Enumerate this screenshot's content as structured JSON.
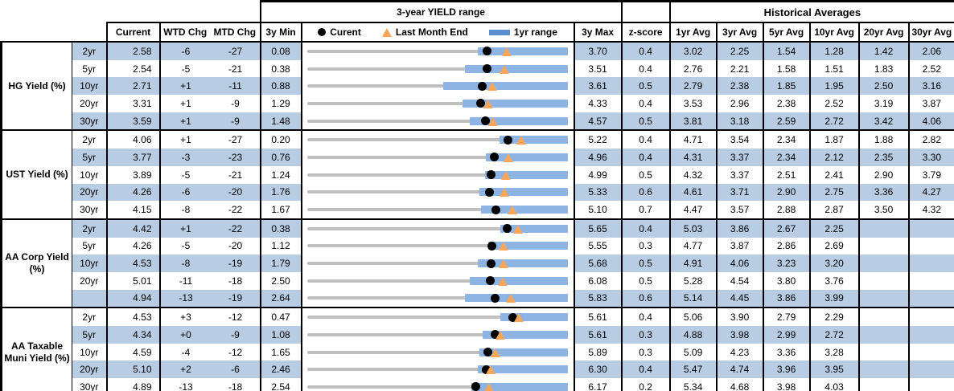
{
  "colors": {
    "stripe_blue": "#b8cce4",
    "range_bar_blue": "#8eb4e3",
    "track_gray": "#bfbfbf",
    "marker_orange": "#f9a65a",
    "marker_black": "#000000"
  },
  "chart_data": {
    "type": "table",
    "title_range": "3-year YIELD range",
    "title_hist": "Historical Averages",
    "legend": {
      "current": "Curent",
      "last_month_end": "Last Month End",
      "range1yr": "1yr range"
    },
    "columns": {
      "current": "Current",
      "wtd": "WTD Chg",
      "mtd": "MTD Chg",
      "min": "3y Min",
      "max": "3y Max",
      "z": "z-score",
      "avgs": [
        "1yr Avg",
        "3yr Avg",
        "5yr Avg",
        "10yr Avg",
        "20yr Avg",
        "30yr Avg"
      ]
    },
    "range_chart_notes": {
      "dot": "current value",
      "triangle": "last month end = current - MTD chg (bp)",
      "bar": "1yr range, low estimated from pixels, high = 3y max",
      "axis": "each row spans 3y Min to 3y Max"
    },
    "groups": [
      {
        "name": "HG Yield (%)",
        "rows": [
          {
            "tenor": "2yr",
            "current": "2.58",
            "wtd": "-6",
            "mtd": "-27",
            "min": "0.08",
            "max": "3.70",
            "z": "0.4",
            "yr1_low_est": 2.45,
            "avgs": [
              "3.02",
              "2.25",
              "1.54",
              "1.28",
              "1.42",
              "2.06"
            ]
          },
          {
            "tenor": "5yr",
            "current": "2.54",
            "wtd": "-5",
            "mtd": "-21",
            "min": "0.38",
            "max": "3.51",
            "z": "0.4",
            "yr1_low_est": 2.27,
            "avgs": [
              "2.76",
              "2.21",
              "1.58",
              "1.51",
              "1.83",
              "2.52"
            ]
          },
          {
            "tenor": "10yr",
            "current": "2.71",
            "wtd": "+1",
            "mtd": "-11",
            "min": "0.88",
            "max": "3.61",
            "z": "0.5",
            "yr1_low_est": 2.3,
            "avgs": [
              "2.79",
              "2.38",
              "1.85",
              "1.95",
              "2.50",
              "3.16"
            ]
          },
          {
            "tenor": "20yr",
            "current": "3.31",
            "wtd": "+1",
            "mtd": "-9",
            "min": "1.29",
            "max": "4.33",
            "z": "0.4",
            "yr1_low_est": 3.1,
            "avgs": [
              "3.53",
              "2.96",
              "2.38",
              "2.52",
              "3.19",
              "3.87"
            ]
          },
          {
            "tenor": "30yr",
            "current": "3.59",
            "wtd": "+1",
            "mtd": "-9",
            "min": "1.48",
            "max": "4.57",
            "z": "0.5",
            "yr1_low_est": 3.41,
            "avgs": [
              "3.81",
              "3.18",
              "2.59",
              "2.72",
              "3.42",
              "4.06"
            ]
          }
        ]
      },
      {
        "name": "UST Yield (%)",
        "rows": [
          {
            "tenor": "2yr",
            "current": "4.06",
            "wtd": "+1",
            "mtd": "-27",
            "min": "0.20",
            "max": "5.22",
            "z": "0.4",
            "yr1_low_est": 3.9,
            "avgs": [
              "4.71",
              "3.54",
              "2.34",
              "1.87",
              "1.88",
              "2.82"
            ]
          },
          {
            "tenor": "5yr",
            "current": "3.77",
            "wtd": "-3",
            "mtd": "-23",
            "min": "0.76",
            "max": "4.96",
            "z": "0.4",
            "yr1_low_est": 3.64,
            "avgs": [
              "4.31",
              "3.37",
              "2.34",
              "2.12",
              "2.35",
              "3.30"
            ]
          },
          {
            "tenor": "10yr",
            "current": "3.89",
            "wtd": "-5",
            "mtd": "-21",
            "min": "1.24",
            "max": "4.99",
            "z": "0.5",
            "yr1_low_est": 3.8,
            "avgs": [
              "4.32",
              "3.37",
              "2.51",
              "2.41",
              "2.90",
              "3.79"
            ]
          },
          {
            "tenor": "20yr",
            "current": "4.26",
            "wtd": "-6",
            "mtd": "-20",
            "min": "1.76",
            "max": "5.33",
            "z": "0.6",
            "yr1_low_est": 4.12,
            "avgs": [
              "4.61",
              "3.71",
              "2.90",
              "2.75",
              "3.36",
              "4.27"
            ]
          },
          {
            "tenor": "30yr",
            "current": "4.15",
            "wtd": "-8",
            "mtd": "-22",
            "min": "1.67",
            "max": "5.10",
            "z": "0.7",
            "yr1_low_est": 3.96,
            "avgs": [
              "4.47",
              "3.57",
              "2.88",
              "2.87",
              "3.50",
              "4.32"
            ]
          }
        ]
      },
      {
        "name": "AA Corp Yield (%)",
        "rows": [
          {
            "tenor": "2yr",
            "current": "4.42",
            "wtd": "+1",
            "mtd": "-22",
            "min": "0.38",
            "max": "5.65",
            "z": "0.4",
            "yr1_low_est": 4.28,
            "avgs": [
              "5.03",
              "3.86",
              "2.67",
              "2.25",
              "",
              ""
            ]
          },
          {
            "tenor": "5yr",
            "current": "4.26",
            "wtd": "-5",
            "mtd": "-20",
            "min": "1.12",
            "max": "5.55",
            "z": "0.3",
            "yr1_low_est": 4.2,
            "avgs": [
              "4.77",
              "3.87",
              "2.86",
              "2.69",
              "",
              ""
            ]
          },
          {
            "tenor": "10yr",
            "current": "4.53",
            "wtd": "-8",
            "mtd": "-19",
            "min": "1.79",
            "max": "5.68",
            "z": "0.5",
            "yr1_low_est": 4.33,
            "avgs": [
              "4.91",
              "4.06",
              "3.23",
              "3.20",
              "",
              ""
            ]
          },
          {
            "tenor": "20yr",
            "current": "5.01",
            "wtd": "-11",
            "mtd": "-18",
            "min": "2.50",
            "max": "6.08",
            "z": "0.5",
            "yr1_low_est": 4.73,
            "avgs": [
              "5.28",
              "4.54",
              "3.80",
              "3.76",
              "",
              ""
            ]
          },
          {
            "tenor": "",
            "current": "4.94",
            "wtd": "-13",
            "mtd": "-19",
            "min": "2.64",
            "max": "5.83",
            "z": "0.6",
            "yr1_low_est": 4.57,
            "avgs": [
              "5.14",
              "4.45",
              "3.86",
              "3.99",
              "",
              ""
            ]
          }
        ]
      },
      {
        "name": "AA Taxable Muni Yield (%)",
        "rows": [
          {
            "tenor": "2yr",
            "current": "4.53",
            "wtd": "+3",
            "mtd": "-12",
            "min": "0.47",
            "max": "5.61",
            "z": "0.4",
            "yr1_low_est": 4.28,
            "avgs": [
              "5.06",
              "3.90",
              "2.79",
              "2.29",
              "",
              ""
            ]
          },
          {
            "tenor": "5yr",
            "current": "4.34",
            "wtd": "+0",
            "mtd": "-9",
            "min": "1.08",
            "max": "5.61",
            "z": "0.3",
            "yr1_low_est": 4.13,
            "avgs": [
              "4.88",
              "3.98",
              "2.99",
              "2.72",
              "",
              ""
            ]
          },
          {
            "tenor": "10yr",
            "current": "4.59",
            "wtd": "-4",
            "mtd": "-12",
            "min": "1.65",
            "max": "5.89",
            "z": "0.3",
            "yr1_low_est": 4.45,
            "avgs": [
              "5.09",
              "4.23",
              "3.36",
              "3.28",
              "",
              ""
            ]
          },
          {
            "tenor": "20yr",
            "current": "5.10",
            "wtd": "+2",
            "mtd": "-6",
            "min": "2.46",
            "max": "6.30",
            "z": "0.4",
            "yr1_low_est": 4.97,
            "avgs": [
              "5.47",
              "4.74",
              "3.96",
              "3.95",
              "",
              ""
            ]
          },
          {
            "tenor": "30yr",
            "current": "4.89",
            "wtd": "-13",
            "mtd": "-18",
            "min": "2.54",
            "max": "6.17",
            "z": "0.2",
            "yr1_low_est": 4.82,
            "avgs": [
              "5.34",
              "4.68",
              "3.98",
              "4.03",
              "",
              ""
            ]
          }
        ]
      }
    ]
  }
}
